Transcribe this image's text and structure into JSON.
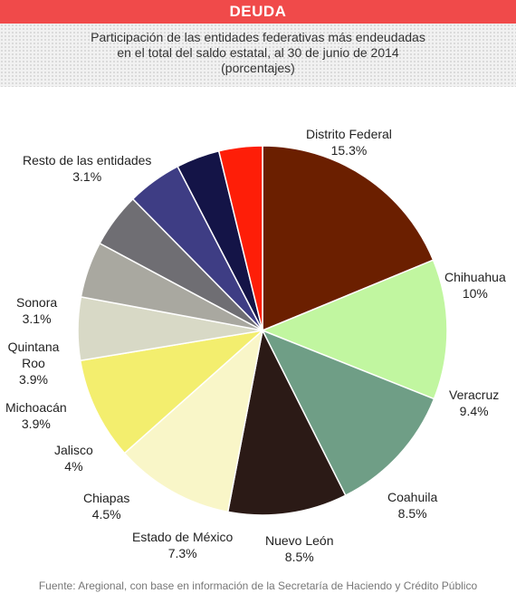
{
  "header": {
    "title": "DEUDA"
  },
  "subtitle": {
    "line1": "Participación de las entidades federativas más endeudadas",
    "line2": "en el total del saldo estatal, al 30 de junio de 2014",
    "line3": "(porcentajes)"
  },
  "chart_data": {
    "type": "pie",
    "title": "Participación de las entidades federativas más endeudadas en el total del saldo estatal, al 30 de junio de 2014 (porcentajes)",
    "slices": [
      {
        "name": "Distrito Federal",
        "value": 15.3,
        "label": "15.3%",
        "color": "#6b1f00"
      },
      {
        "name": "Chihuahua",
        "value": 10,
        "label": "10%",
        "color": "#c1f6a0"
      },
      {
        "name": "Veracruz",
        "value": 9.4,
        "label": "9.4%",
        "color": "#6f9e86"
      },
      {
        "name": "Coahuila",
        "value": 8.5,
        "label": "8.5%",
        "color": "#2b1a16"
      },
      {
        "name": "Nuevo León",
        "value": 8.5,
        "label": "8.5%",
        "color": "#f9f6c8"
      },
      {
        "name": "Estado de México",
        "value": 7.3,
        "label": "7.3%",
        "color": "#f3ee6e"
      },
      {
        "name": "Chiapas",
        "value": 4.5,
        "label": "4.5%",
        "color": "#d8d9c6"
      },
      {
        "name": "Jalisco",
        "value": 4,
        "label": "4%",
        "color": "#a9a8a0"
      },
      {
        "name": "Michoacán",
        "value": 3.9,
        "label": "3.9%",
        "color": "#6f6e73"
      },
      {
        "name": "Quintana Roo",
        "value": 3.9,
        "label": "3.9%",
        "color": "#3e3d84"
      },
      {
        "name": "Sonora",
        "value": 3.1,
        "label": "3.1%",
        "color": "#141447"
      },
      {
        "name": "Resto de las entidades",
        "value": 3.1,
        "label": "3.1%",
        "color": "#fe1e08"
      }
    ]
  },
  "source": "Fuente: Aregional, con base en información de la Secretaría de Haciendo y Crédito Público"
}
